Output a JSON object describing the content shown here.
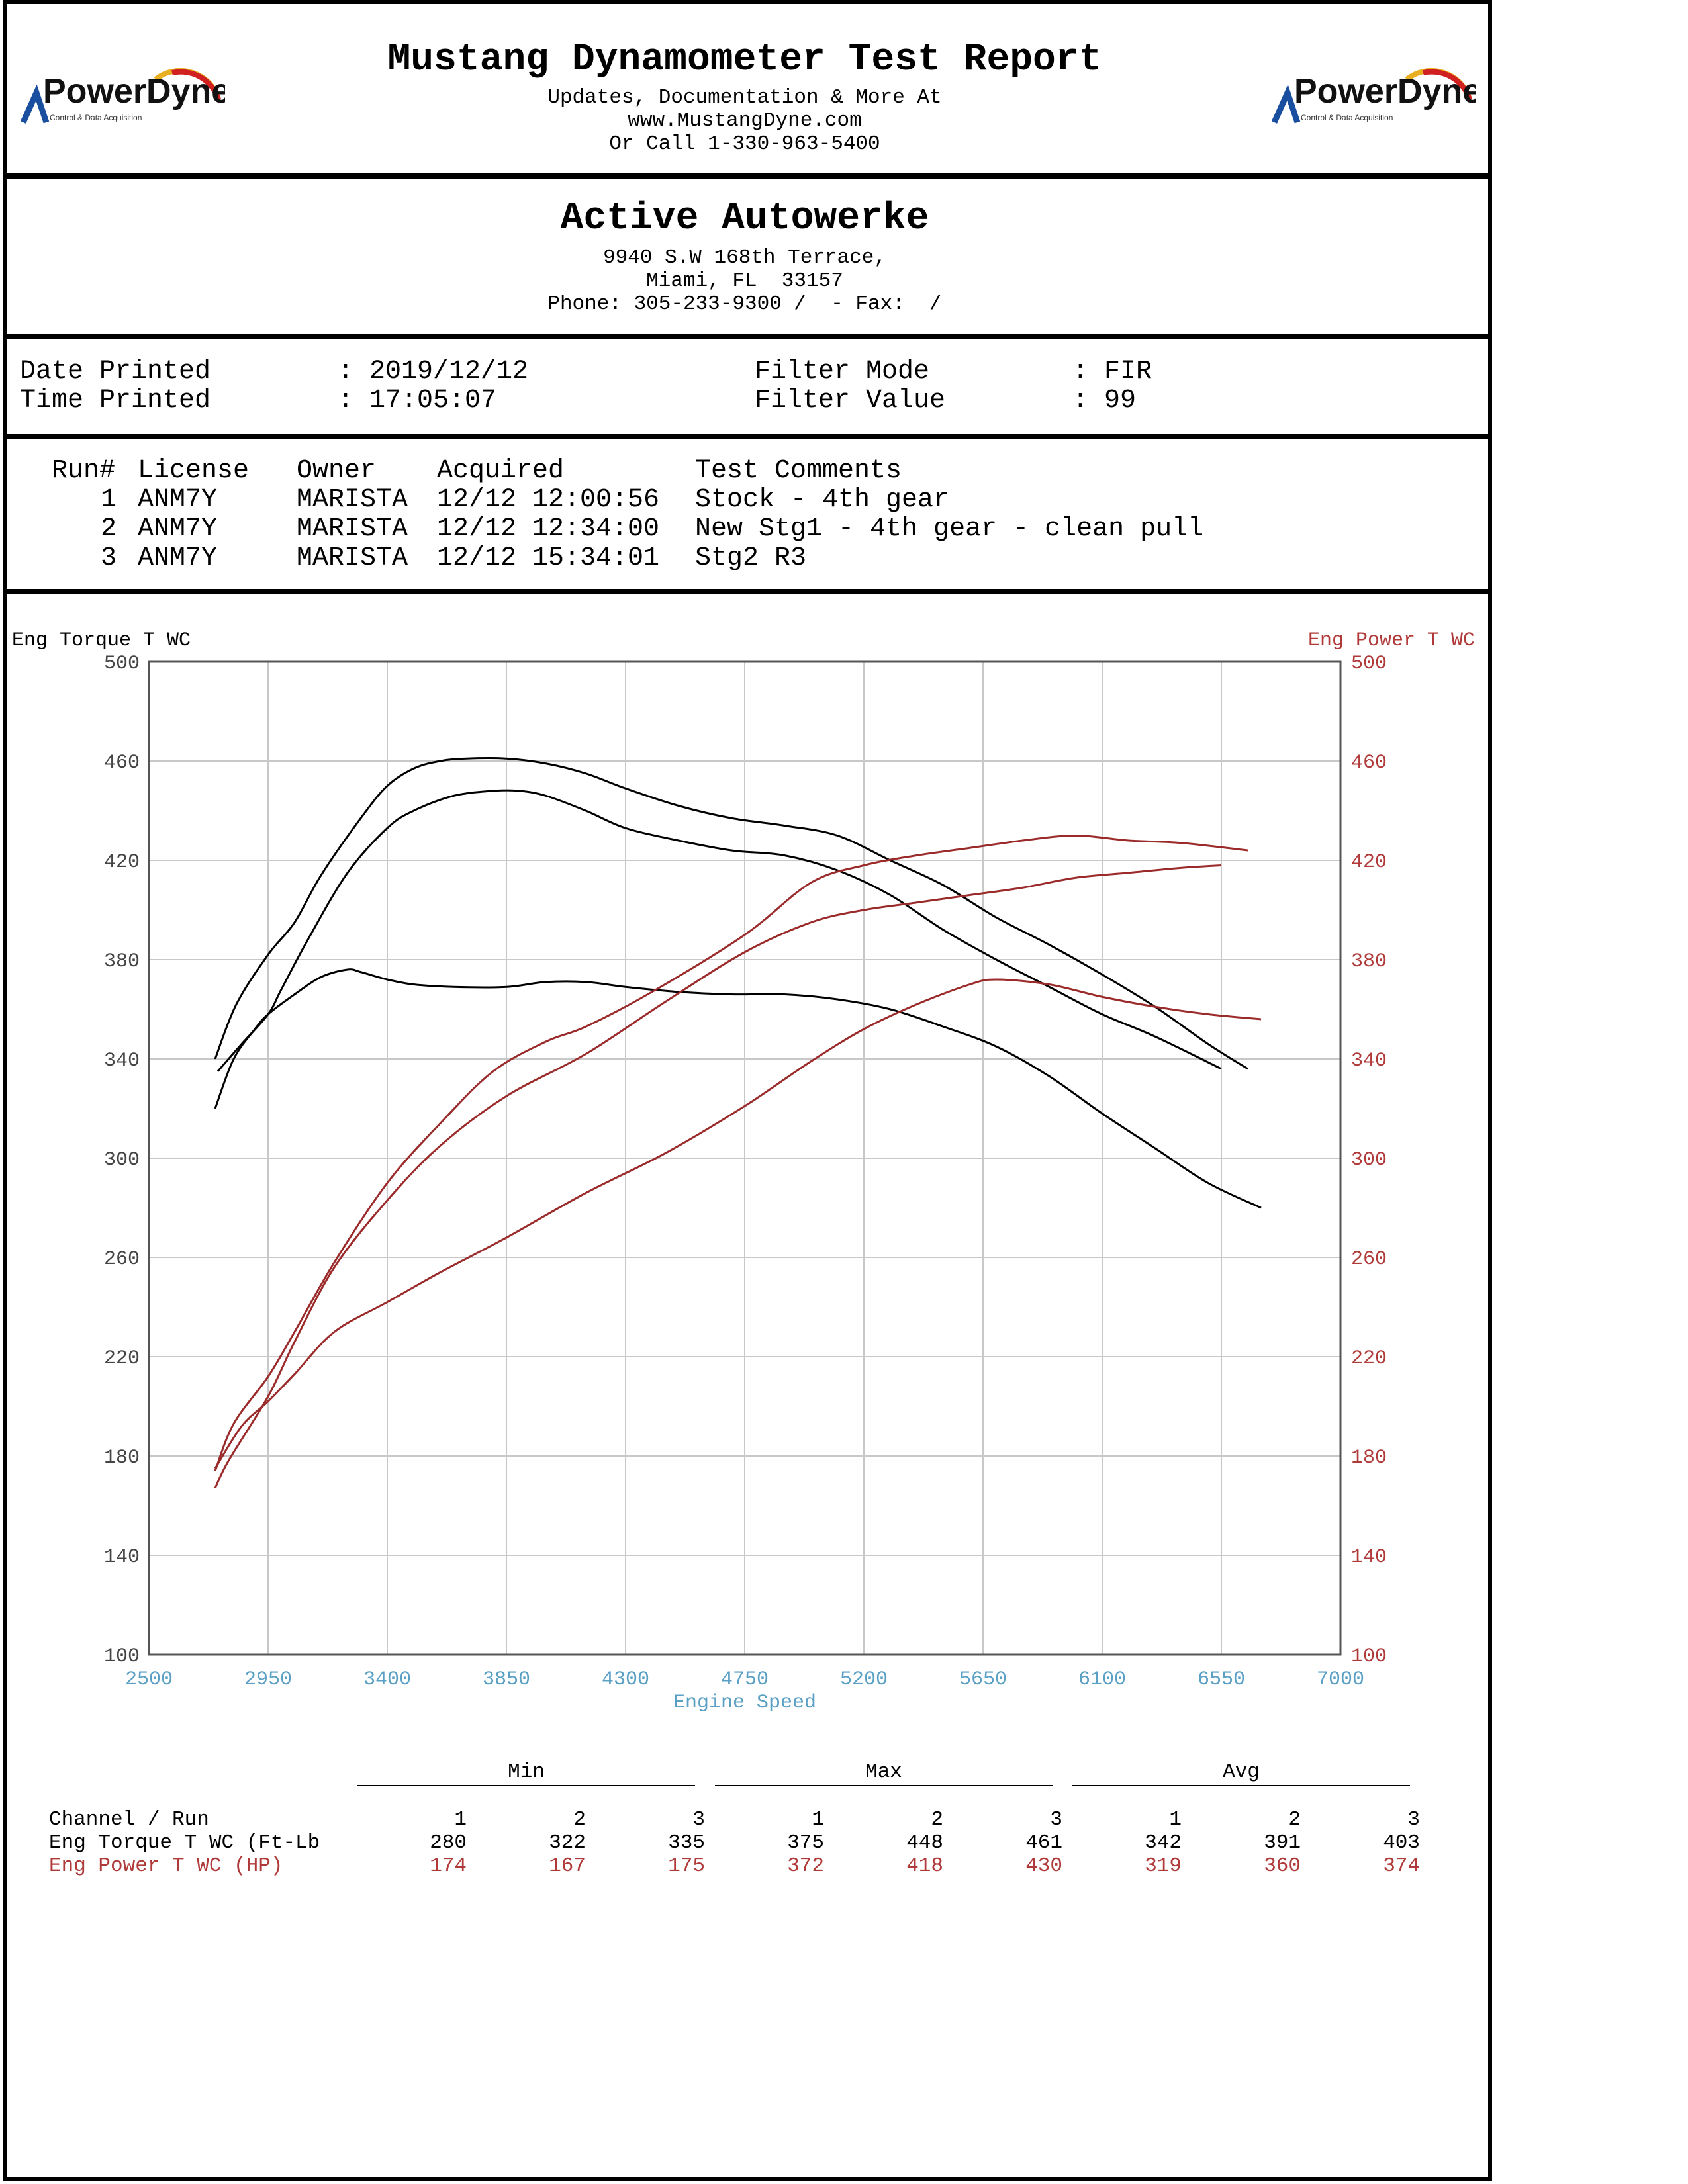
{
  "header": {
    "logo_left": {
      "brand": "PowerDyne",
      "tagline": "Control & Data Acquisition"
    },
    "logo_right": {
      "brand": "PowerDyne",
      "tagline": "Control & Data Acquisition"
    },
    "title": "Mustang Dynamometer Test Report",
    "line1": "Updates, Documentation & More At",
    "line2": "www.MustangDyne.com",
    "line3": "Or Call 1-330-963-5400"
  },
  "shop": {
    "name": "Active Autowerke",
    "address1": "9940 S.W 168th Terrace,",
    "address2": "Miami, FL  33157",
    "phone": "Phone: 305-233-9300 /  - Fax:  /"
  },
  "info": {
    "date_label": "Date Printed",
    "date_value": ": 2019/12/12",
    "time_label": "Time Printed",
    "time_value": ": 17:05:07",
    "filter_mode_label": "Filter Mode",
    "filter_mode_value": ": FIR",
    "filter_value_label": "Filter Value",
    "filter_value_value": ": 99"
  },
  "runs": {
    "headers": [
      "Run#",
      "License",
      "Owner",
      "Acquired",
      "Test Comments"
    ],
    "rows": [
      [
        "1",
        "ANM7Y",
        "MARISTA",
        "12/12 12:00:56",
        "Stock - 4th gear"
      ],
      [
        "2",
        "ANM7Y",
        "MARISTA",
        "12/12 12:34:00",
        "New Stg1 - 4th gear - clean pull"
      ],
      [
        "3",
        "ANM7Y",
        "MARISTA",
        "12/12 15:34:01",
        "Stg2 R3"
      ]
    ]
  },
  "colors": {
    "torque": "#000000",
    "power": "#9b2a2a",
    "axis_blue": "#5a9fc4",
    "grid": "#c8c8c8"
  },
  "chart_data": {
    "type": "line",
    "ylabel_left": "Eng Torque T WC",
    "ylabel_right": "Eng Power T WC",
    "xlabel": "Engine Speed",
    "xlim": [
      2500,
      7000
    ],
    "ylim": [
      100,
      500
    ],
    "x_ticks": [
      2500,
      2950,
      3400,
      3850,
      4300,
      4750,
      5200,
      5650,
      6100,
      6550,
      7000
    ],
    "y_ticks": [
      100,
      140,
      180,
      220,
      260,
      300,
      340,
      380,
      420,
      460,
      500
    ],
    "grid": true,
    "series": [
      {
        "axis": "left",
        "x": [
          2750,
          2820,
          2900,
          2950,
          3050,
          3150,
          3250,
          3300,
          3400,
          3500,
          3650,
          3850,
          4000,
          4150,
          4300,
          4500,
          4700,
          4900,
          5100,
          5300,
          5500,
          5700,
          5900,
          6100,
          6300,
          6500,
          6700
        ],
        "y": [
          320,
          340,
          352,
          358,
          366,
          373,
          376,
          375,
          372,
          370,
          369,
          369,
          371,
          371,
          369,
          367,
          366,
          366,
          364,
          360,
          353,
          345,
          333,
          318,
          304,
          290,
          280
        ]
      },
      {
        "axis": "left",
        "x": [
          2760,
          2850,
          2950,
          3000,
          3100,
          3250,
          3400,
          3500,
          3650,
          3800,
          3900,
          4000,
          4150,
          4300,
          4500,
          4700,
          4900,
          5100,
          5300,
          5500,
          5700,
          5900,
          6100,
          6300,
          6550
        ],
        "y": [
          335,
          346,
          358,
          368,
          388,
          415,
          433,
          440,
          446,
          448,
          448,
          446,
          440,
          433,
          428,
          424,
          422,
          416,
          406,
          392,
          380,
          369,
          358,
          349,
          336
        ]
      },
      {
        "axis": "left",
        "x": [
          2750,
          2830,
          2950,
          3050,
          3150,
          3300,
          3400,
          3500,
          3600,
          3700,
          3850,
          4000,
          4150,
          4300,
          4500,
          4700,
          4900,
          5100,
          5300,
          5500,
          5700,
          5900,
          6100,
          6300,
          6500,
          6650
        ],
        "y": [
          340,
          362,
          382,
          395,
          414,
          437,
          450,
          457,
          460,
          461,
          461,
          459,
          455,
          449,
          442,
          437,
          434,
          430,
          420,
          410,
          397,
          386,
          374,
          361,
          346,
          336
        ]
      },
      {
        "axis": "right",
        "x": [
          2750,
          2850,
          2950,
          3050,
          3200,
          3400,
          3600,
          3850,
          4150,
          4450,
          4750,
          5000,
          5200,
          5400,
          5600,
          5700,
          5900,
          6100,
          6300,
          6500,
          6700
        ],
        "y": [
          175,
          192,
          202,
          213,
          230,
          242,
          254,
          268,
          286,
          302,
          321,
          339,
          352,
          362,
          370,
          372,
          370,
          365,
          361,
          358,
          356
        ]
      },
      {
        "axis": "right",
        "x": [
          2750,
          2800,
          2950,
          3050,
          3200,
          3400,
          3600,
          3850,
          4150,
          4450,
          4750,
          5000,
          5200,
          5400,
          5600,
          5800,
          6000,
          6200,
          6400,
          6550
        ],
        "y": [
          167,
          178,
          204,
          226,
          256,
          283,
          305,
          325,
          342,
          363,
          383,
          395,
          400,
          403,
          406,
          409,
          413,
          415,
          417,
          418
        ]
      },
      {
        "axis": "right",
        "x": [
          2750,
          2820,
          2950,
          3050,
          3200,
          3400,
          3600,
          3800,
          4000,
          4150,
          4400,
          4750,
          5000,
          5200,
          5400,
          5600,
          5800,
          6000,
          6200,
          6400,
          6650
        ],
        "y": [
          174,
          193,
          212,
          230,
          258,
          290,
          314,
          335,
          347,
          353,
          367,
          390,
          411,
          418,
          422,
          425,
          428,
          430,
          428,
          427,
          424
        ]
      }
    ]
  },
  "stats": {
    "groups": [
      "Min",
      "Max",
      "Avg"
    ],
    "header_label": "Channel / Run",
    "runs": [
      "1",
      "2",
      "3",
      "1",
      "2",
      "3",
      "1",
      "2",
      "3"
    ],
    "rows": [
      {
        "label": "Eng Torque T WC (Ft-Lb",
        "values": [
          "280",
          "322",
          "335",
          "375",
          "448",
          "461",
          "342",
          "391",
          "403"
        ]
      },
      {
        "label": "Eng Power T WC (HP)",
        "values": [
          "174",
          "167",
          "175",
          "372",
          "418",
          "430",
          "319",
          "360",
          "374"
        ]
      }
    ]
  }
}
